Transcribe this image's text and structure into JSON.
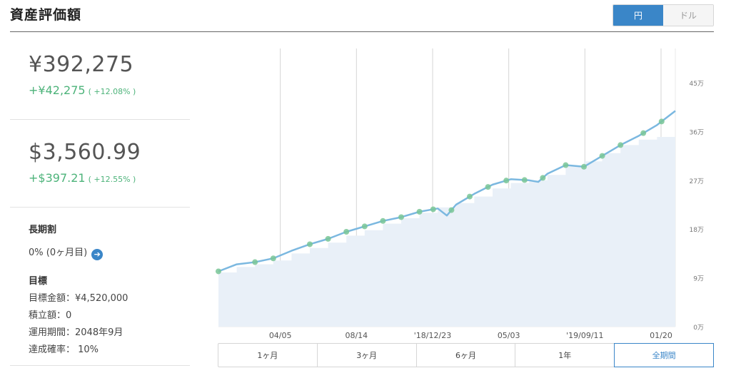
{
  "header": {
    "title": "資産評価額",
    "currency_options": [
      "円",
      "ドル"
    ],
    "active_currency": "円"
  },
  "jpy": {
    "amount": "¥392,275",
    "change": "+¥42,275",
    "pct": "( +12.08% )"
  },
  "usd": {
    "amount": "$3,560.99",
    "change": "+$397.21",
    "pct": "( +12.55% )"
  },
  "long_term": {
    "heading": "長期割",
    "value": "0% (0ヶ月目)"
  },
  "goal": {
    "heading": "目標",
    "target_amount": "目標金額：¥4,520,000",
    "monthly": "積立額：0",
    "period": "運用期間：2048年9月",
    "probability": "達成確率： 10%"
  },
  "range_tabs": [
    "1ヶ月",
    "3ヶ月",
    "6ヶ月",
    "1年",
    "全期間"
  ],
  "active_range": "全期間",
  "colors": {
    "accent": "#3a86c8",
    "positive": "#4db37a",
    "line": "#7bb8e0",
    "area": "#e9f0f8",
    "marker": "#79c596"
  },
  "chart_data": {
    "type": "line",
    "x_tick_labels": [
      "04/05",
      "08/14",
      "'18/12/23",
      "05/03",
      "'19/09/11",
      "01/20"
    ],
    "y_tick_labels": [
      "0万",
      "9万",
      "18万",
      "27万",
      "36万",
      "45万"
    ],
    "ylim": [
      0,
      500000
    ],
    "series": [
      {
        "type": "line",
        "x": [
          0,
          0.04,
          0.08,
          0.12,
          0.16,
          0.2,
          0.24,
          0.28,
          0.32,
          0.36,
          0.4,
          0.44,
          0.48,
          0.5,
          0.52,
          0.56,
          0.6,
          0.64,
          0.68,
          0.7,
          0.72,
          0.76,
          0.8,
          0.84,
          0.88,
          0.92,
          0.96,
          1.0
        ],
        "y": [
          102000,
          115000,
          119000,
          126000,
          140000,
          152000,
          162000,
          175000,
          185000,
          195000,
          202000,
          212000,
          218000,
          205000,
          225000,
          245000,
          262000,
          272000,
          270000,
          267000,
          282000,
          298000,
          295000,
          315000,
          335000,
          352000,
          372000,
          398000
        ]
      },
      {
        "type": "area",
        "x": [
          0,
          0.04,
          0.08,
          0.12,
          0.16,
          0.2,
          0.24,
          0.28,
          0.32,
          0.36,
          0.4,
          0.44,
          0.48,
          0.52,
          0.56,
          0.6,
          0.64,
          0.68,
          0.72,
          0.76,
          0.8,
          0.84,
          0.88,
          0.92,
          0.96,
          1.0
        ],
        "y": [
          100000,
          110000,
          115000,
          122000,
          135000,
          145000,
          155000,
          168000,
          178000,
          190000,
          200000,
          210000,
          220000,
          228000,
          240000,
          255000,
          265000,
          270000,
          280000,
          295000,
          305000,
          320000,
          335000,
          345000,
          350000,
          360000
        ]
      }
    ],
    "markers": [
      0.0,
      0.08,
      0.12,
      0.2,
      0.24,
      0.28,
      0.32,
      0.36,
      0.4,
      0.44,
      0.47,
      0.51,
      0.55,
      0.59,
      0.63,
      0.67,
      0.71,
      0.76,
      0.8,
      0.84,
      0.88,
      0.93,
      0.97
    ],
    "vlines_at_ticks": true,
    "grid": false
  }
}
